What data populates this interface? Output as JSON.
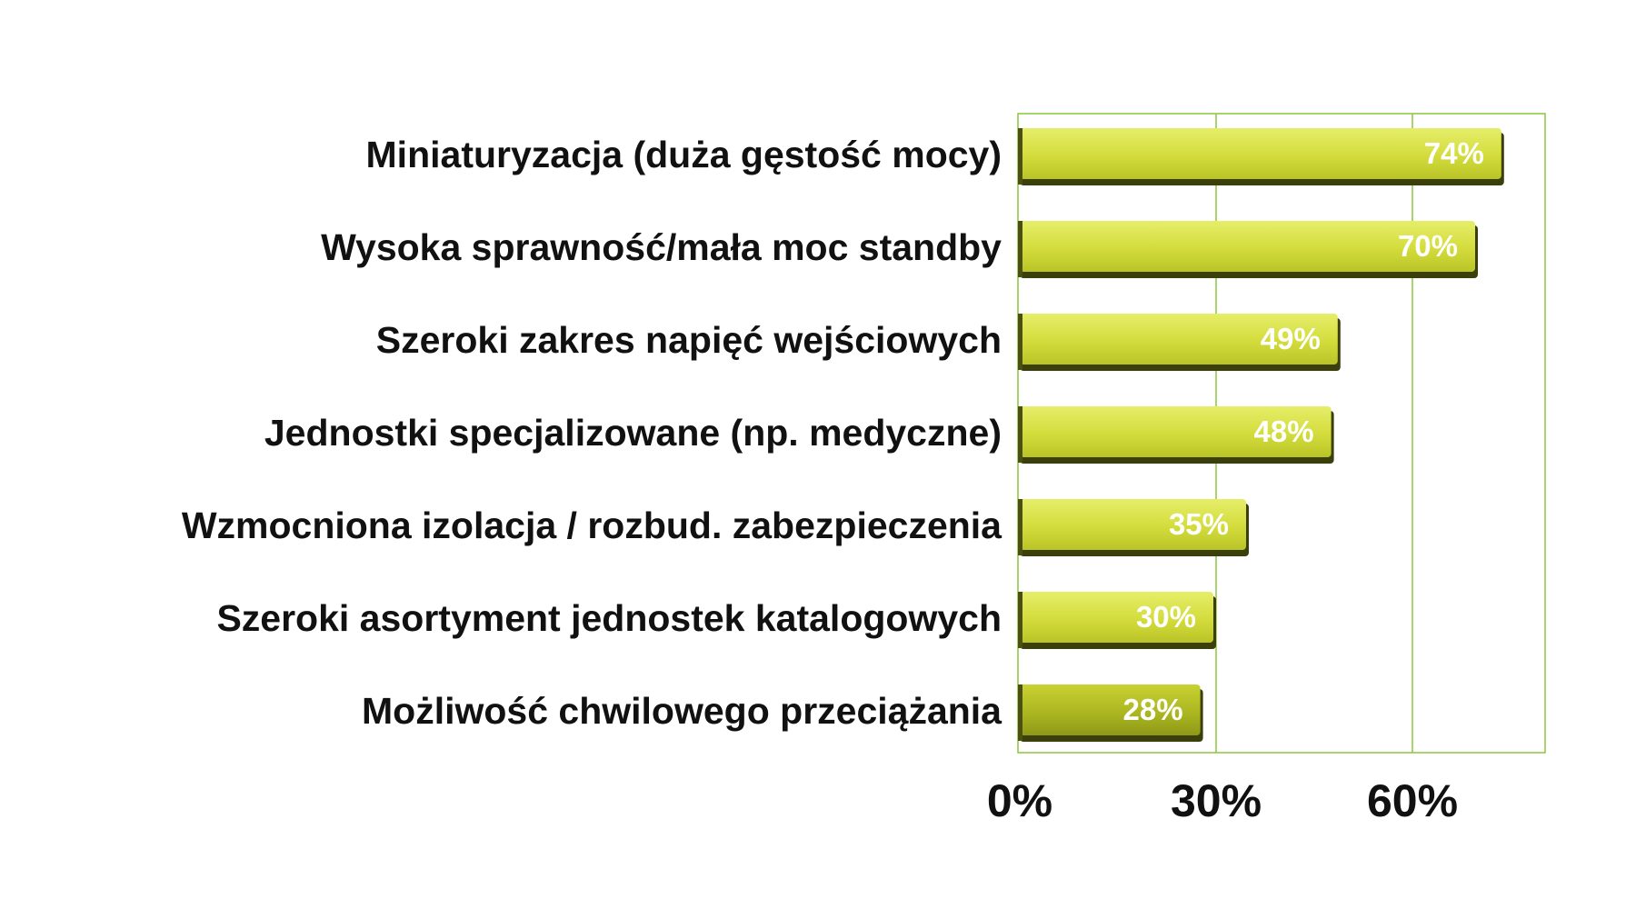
{
  "chart_data": {
    "type": "bar",
    "orientation": "horizontal",
    "categories": [
      "Miniaturyzacja (duża gęstość mocy)",
      "Wysoka sprawność/mała moc standby",
      "Szeroki zakres napięć wejściowych",
      "Jednostki specjalizowane (np. medyczne)",
      "Wzmocniona izolacja / rozbud. zabezpieczenia",
      "Szeroki asortyment jednostek katalogowych",
      "Możliwość chwilowego przeciążania"
    ],
    "values": [
      74,
      70,
      49,
      48,
      35,
      30,
      28
    ],
    "value_labels": [
      "74%",
      "70%",
      "49%",
      "48%",
      "35%",
      "30%",
      "28%"
    ],
    "x_ticks": [
      0,
      30,
      60
    ],
    "x_tick_labels": [
      "0%",
      "30%",
      "60%"
    ],
    "xlim": [
      0,
      80
    ],
    "grid": true,
    "legend": "none",
    "title": "",
    "xlabel": "",
    "ylabel": "",
    "colors": {
      "bar_light": "#e4ec63",
      "bar_mid": "#cfd935",
      "bar_dark": "#a7b31e",
      "bar_shadow": "#3a3f0c",
      "grid": "#8cc63f",
      "text": "#111111",
      "value_text": "#ffffff"
    }
  }
}
